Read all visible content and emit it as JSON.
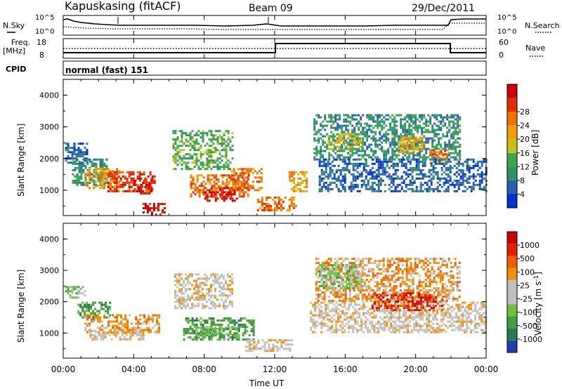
{
  "header": {
    "station": "Kapuskasing (fitACF)",
    "beam": "Beam 09",
    "date": "29/Dec/2011"
  },
  "noise_panel": {
    "left_label": "N.Sky",
    "right_label": "N.Search",
    "left_ticks": [
      "10^5",
      "10^0"
    ],
    "right_ticks": [
      "10^5",
      "10^0"
    ]
  },
  "freq_panel": {
    "left_label_1": "Freq.",
    "left_label_2": "[MHz]",
    "right_label": "Nave",
    "left_ticks": [
      "18",
      "8"
    ],
    "right_ticks": [
      "60",
      "0"
    ]
  },
  "cpid": {
    "label": "CPID",
    "value": "normal (fast) 151"
  },
  "colors": {
    "power_scale": [
      "#0033cc",
      "#2a5fb0",
      "#2f8f6a",
      "#3ba84a",
      "#c8c020",
      "#f0a000",
      "#f07000",
      "#e03000",
      "#cc0000"
    ],
    "velocity_scale": [
      "#2040b0",
      "#2d7a50",
      "#40a040",
      "#70c040",
      "#c0c0c0",
      "#c0c0c0",
      "#f09000",
      "#f06000",
      "#e02000",
      "#cc0000"
    ]
  },
  "chart_data": [
    {
      "type": "heatmap",
      "name": "power",
      "ylabel": "Slant Range [km]",
      "ylim": [
        200,
        4500
      ],
      "yticks": [
        "1000",
        "2000",
        "3000",
        "4000"
      ],
      "xlim_hours": [
        0,
        24
      ],
      "colorbar": {
        "label": "Power [dB]",
        "ticks": [
          "4",
          "8",
          "12",
          "16",
          "20",
          "24",
          "28"
        ]
      },
      "regions": [
        {
          "t0": 0.1,
          "t1": 1.3,
          "r0": 1900,
          "r1": 2500,
          "level": 1
        },
        {
          "t0": 0.5,
          "t1": 2.5,
          "r0": 1200,
          "r1": 2000,
          "level": 2
        },
        {
          "t0": 1.2,
          "t1": 3.2,
          "r0": 1100,
          "r1": 1700,
          "level": 5
        },
        {
          "t0": 2.5,
          "t1": 5.2,
          "r0": 1000,
          "r1": 1600,
          "level": 7
        },
        {
          "t0": 4.0,
          "t1": 5.0,
          "r0": 900,
          "r1": 1400,
          "level": 8
        },
        {
          "t0": 4.5,
          "t1": 5.8,
          "r0": 250,
          "r1": 600,
          "level": 8
        },
        {
          "t0": 6.2,
          "t1": 9.6,
          "r0": 1700,
          "r1": 2900,
          "level": 3
        },
        {
          "t0": 7.2,
          "t1": 10.5,
          "r0": 800,
          "r1": 1500,
          "level": 6
        },
        {
          "t0": 8.0,
          "t1": 10.0,
          "r0": 700,
          "r1": 1100,
          "level": 8
        },
        {
          "t0": 9.4,
          "t1": 11.2,
          "r0": 1000,
          "r1": 1700,
          "level": 6
        },
        {
          "t0": 11.0,
          "t1": 13.2,
          "r0": 400,
          "r1": 800,
          "level": 6
        },
        {
          "t0": 12.8,
          "t1": 13.8,
          "r0": 1000,
          "r1": 1600,
          "level": 5
        },
        {
          "t0": 14.2,
          "t1": 22.5,
          "r0": 2000,
          "r1": 3400,
          "level": 2
        },
        {
          "t0": 15.0,
          "t1": 17.0,
          "r0": 2300,
          "r1": 2800,
          "level": 4
        },
        {
          "t0": 19.0,
          "t1": 20.5,
          "r0": 2200,
          "r1": 2700,
          "level": 5
        },
        {
          "t0": 20.8,
          "t1": 21.8,
          "r0": 1900,
          "r1": 2300,
          "level": 6
        },
        {
          "t0": 14.5,
          "t1": 24.0,
          "r0": 1000,
          "r1": 2000,
          "level": 1
        }
      ]
    },
    {
      "type": "heatmap",
      "name": "velocity",
      "ylabel": "Slant Range [km]",
      "xlabel": "Time UT",
      "ylim": [
        200,
        4500
      ],
      "yticks": [
        "1000",
        "2000",
        "3000",
        "4000"
      ],
      "xticks": [
        "00:00",
        "04:00",
        "08:00",
        "12:00",
        "16:00",
        "20:00",
        "00:00"
      ],
      "xlim_hours": [
        0,
        24
      ],
      "colorbar": {
        "label": "Velocity [m s^-1]",
        "ticks": [
          "1000",
          "500",
          "100",
          "25",
          "-25",
          "-100",
          "-500",
          "-1000"
        ]
      },
      "regions": [
        {
          "t0": 0.1,
          "t1": 1.2,
          "r0": 2100,
          "r1": 2500,
          "level": 3
        },
        {
          "t0": 0.8,
          "t1": 2.6,
          "r0": 1500,
          "r1": 2000,
          "level": 2
        },
        {
          "t0": 1.2,
          "t1": 5.5,
          "r0": 1000,
          "r1": 1600,
          "level": 6
        },
        {
          "t0": 1.5,
          "t1": 4.5,
          "r0": 800,
          "r1": 1100,
          "level": 5
        },
        {
          "t0": 6.3,
          "t1": 9.6,
          "r0": 1800,
          "r1": 2900,
          "level": 5
        },
        {
          "t0": 6.8,
          "t1": 10.8,
          "r0": 800,
          "r1": 1500,
          "level": 2
        },
        {
          "t0": 7.5,
          "t1": 9.8,
          "r0": 900,
          "r1": 1200,
          "level": 3
        },
        {
          "t0": 10.3,
          "t1": 13.0,
          "r0": 400,
          "r1": 800,
          "level": 5
        },
        {
          "t0": 14.0,
          "t1": 24.0,
          "r0": 1000,
          "r1": 2000,
          "level": 5
        },
        {
          "t0": 14.3,
          "t1": 22.5,
          "r0": 2000,
          "r1": 3400,
          "level": 6
        },
        {
          "t0": 17.5,
          "t1": 21.5,
          "r0": 1700,
          "r1": 2300,
          "level": 8
        },
        {
          "t0": 14.5,
          "t1": 17.0,
          "r0": 2400,
          "r1": 3200,
          "level": 3
        }
      ]
    }
  ]
}
